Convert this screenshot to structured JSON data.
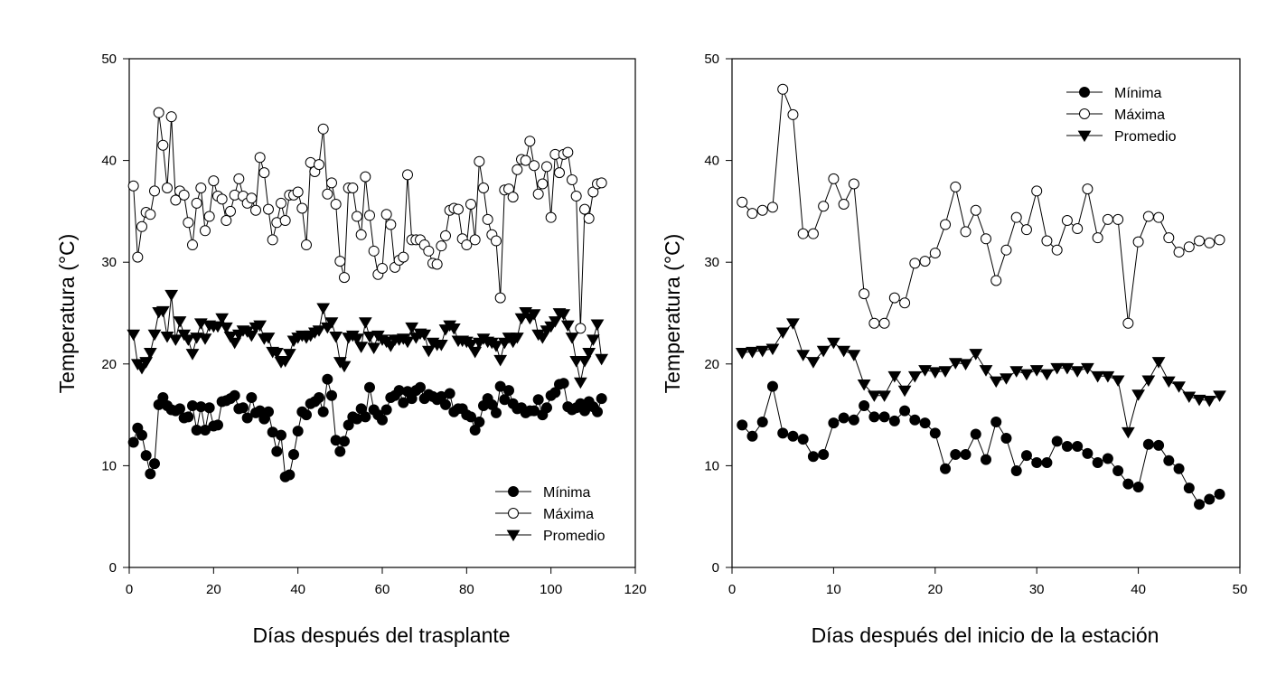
{
  "chart_data": [
    {
      "type": "line",
      "title": "",
      "xlabel": "Días después del trasplante",
      "ylabel": "Temperatura (°C)",
      "xlim": [
        0,
        120
      ],
      "ylim": [
        0,
        50
      ],
      "xticks": [
        0,
        20,
        40,
        60,
        80,
        100,
        120
      ],
      "yticks": [
        0,
        10,
        20,
        30,
        40,
        50
      ],
      "legend_position": "bottom-right",
      "x": [
        1,
        2,
        3,
        4,
        5,
        6,
        7,
        8,
        9,
        10,
        11,
        12,
        13,
        14,
        15,
        16,
        17,
        18,
        19,
        20,
        21,
        22,
        23,
        24,
        25,
        26,
        27,
        28,
        29,
        30,
        31,
        32,
        33,
        34,
        35,
        36,
        37,
        38,
        39,
        40,
        41,
        42,
        43,
        44,
        45,
        46,
        47,
        48,
        49,
        50,
        51,
        52,
        53,
        54,
        55,
        56,
        57,
        58,
        59,
        60,
        61,
        62,
        63,
        64,
        65,
        66,
        67,
        68,
        69,
        70,
        71,
        72,
        73,
        74,
        75,
        76,
        77,
        78,
        79,
        80,
        81,
        82,
        83,
        84,
        85,
        86,
        87,
        88,
        89,
        90,
        91,
        92,
        93,
        94,
        95,
        96,
        97,
        98,
        99,
        100,
        101,
        102,
        103,
        104,
        105,
        106,
        107,
        108,
        109,
        110,
        111,
        112
      ],
      "series": [
        {
          "name": "Mínima",
          "marker": "filled-circle",
          "values": [
            12.3,
            13.7,
            13,
            11,
            9.2,
            10.2,
            16,
            16.7,
            15.9,
            15.5,
            15.4,
            15.6,
            14.7,
            14.8,
            15.9,
            13.5,
            15.8,
            13.5,
            15.7,
            13.9,
            14,
            16.3,
            16.4,
            16.6,
            16.9,
            15.6,
            15.7,
            14.7,
            16.7,
            15.2,
            15.4,
            14.6,
            15.3,
            13.3,
            11.4,
            13,
            8.9,
            9.1,
            11.1,
            13.4,
            15.3,
            15,
            16.1,
            16.3,
            16.7,
            15.3,
            18.5,
            16.9,
            12.5,
            11.4,
            12.4,
            14,
            14.8,
            14.6,
            15.6,
            14.8,
            17.7,
            15.5,
            15,
            14.5,
            15.5,
            16.7,
            16.9,
            17.4,
            16.2,
            17.3,
            16.6,
            17.4,
            17.7,
            16.6,
            17,
            16.8,
            16.5,
            16.8,
            16,
            17.1,
            15.3,
            15.6,
            15.6,
            15,
            14.8,
            13.5,
            14.3,
            15.9,
            16.6,
            16,
            15.2,
            17.8,
            16.5,
            17.4,
            16.1,
            15.6,
            15.7,
            15.2,
            15.4,
            15.4,
            16.5,
            15,
            15.7,
            16.9,
            17.2,
            18,
            18.1,
            15.8,
            15.5,
            15.7,
            16.1,
            15.4,
            16.3,
            15.8,
            15.3,
            16.6
          ]
        },
        {
          "name": "Máxima",
          "marker": "open-circle",
          "values": [
            37.5,
            30.5,
            33.5,
            34.9,
            34.7,
            37,
            44.7,
            41.5,
            37.3,
            44.3,
            36.1,
            37,
            36.6,
            33.9,
            31.7,
            35.8,
            37.3,
            33.1,
            34.5,
            38,
            36.5,
            36.2,
            34.1,
            35,
            36.6,
            38.2,
            36.5,
            35.8,
            36.3,
            35.1,
            40.3,
            38.8,
            35.2,
            32.2,
            33.9,
            35.8,
            34.1,
            36.6,
            36.6,
            36.9,
            35.3,
            31.7,
            39.8,
            38.9,
            39.6,
            43.1,
            36.7,
            37.8,
            35.7,
            30.1,
            28.5,
            37.3,
            37.3,
            34.5,
            32.7,
            38.4,
            34.6,
            31.1,
            28.8,
            29.4,
            34.7,
            33.7,
            29.5,
            30.2,
            30.5,
            38.6,
            32.2,
            32.2,
            32.2,
            31.7,
            31.1,
            29.9,
            29.8,
            31.6,
            32.6,
            35.1,
            35.3,
            35.2,
            32.3,
            31.7,
            35.7,
            32.2,
            39.9,
            37.3,
            34.2,
            32.7,
            32.1,
            26.5,
            37.1,
            37.2,
            36.4,
            39.1,
            40.1,
            40,
            41.9,
            39.5,
            36.7,
            37.7,
            39.4,
            34.4,
            40.6,
            38.8,
            40.6,
            40.8,
            38.1,
            36.5,
            23.5,
            35.2,
            34.3,
            36.9,
            37.7,
            37.8
          ]
        },
        {
          "name": "Promedio",
          "marker": "filled-triangle-down",
          "values": [
            22.9,
            20,
            19.6,
            20.2,
            21.1,
            22.9,
            25.1,
            25.2,
            22.7,
            26.8,
            22.4,
            24.2,
            22.9,
            22.4,
            21,
            22.6,
            24,
            22.5,
            23.8,
            23.7,
            23.7,
            24.5,
            23.6,
            22.7,
            22.1,
            22.9,
            23.3,
            23.2,
            22.8,
            23.6,
            23.8,
            22.5,
            22.6,
            21.2,
            21.1,
            20.2,
            20.3,
            21,
            22.3,
            22.6,
            22.8,
            22.6,
            22.8,
            23.1,
            23.3,
            25.5,
            23.6,
            24.1,
            22.7,
            20.2,
            19.8,
            22.6,
            22.8,
            22.5,
            21.7,
            24.1,
            22.7,
            21.6,
            22.8,
            22.4,
            22.2,
            21.8,
            22.4,
            22.4,
            22.5,
            22.2,
            23.6,
            22.6,
            23,
            22.9,
            21.3,
            22.1,
            21.9,
            21.9,
            23.4,
            23.8,
            23.5,
            22.3,
            22.3,
            22.2,
            21.9,
            21.2,
            22.1,
            22.5,
            22.2,
            22.1,
            21.8,
            20.4,
            22.1,
            22.6,
            22.2,
            22.6,
            24.5,
            25.1,
            24.5,
            24.9,
            22.9,
            22.6,
            23.3,
            23.7,
            24.2,
            25,
            24.9,
            23.8,
            22.6,
            20.3,
            18.2,
            20.3,
            21.1,
            22.4,
            23.9,
            20.5
          ]
        }
      ]
    },
    {
      "type": "line",
      "title": "",
      "xlabel": "Días después del inicio de la estación",
      "ylabel": "Temperatura (°C)",
      "xlim": [
        0,
        50
      ],
      "ylim": [
        0,
        50
      ],
      "xticks": [
        0,
        10,
        20,
        30,
        40,
        50
      ],
      "yticks": [
        0,
        10,
        20,
        30,
        40,
        50
      ],
      "legend_position": "top-right",
      "x": [
        1,
        2,
        3,
        4,
        5,
        6,
        7,
        8,
        9,
        10,
        11,
        12,
        13,
        14,
        15,
        16,
        17,
        18,
        19,
        20,
        21,
        22,
        23,
        24,
        25,
        26,
        27,
        28,
        29,
        30,
        31,
        32,
        33,
        34,
        35,
        36,
        37,
        38,
        39,
        40,
        41,
        42,
        43,
        44,
        45,
        46,
        47,
        48
      ],
      "series": [
        {
          "name": "Mínima",
          "marker": "filled-circle",
          "values": [
            14,
            12.9,
            14.3,
            17.8,
            13.2,
            12.9,
            12.6,
            10.9,
            11.1,
            14.2,
            14.7,
            14.5,
            15.9,
            14.8,
            14.8,
            14.4,
            15.4,
            14.5,
            14.2,
            13.2,
            9.7,
            11.1,
            11.1,
            13.1,
            10.6,
            14.3,
            12.7,
            9.5,
            11,
            10.3,
            10.3,
            12.4,
            11.9,
            11.9,
            11.2,
            10.3,
            10.7,
            9.5,
            8.2,
            7.9,
            12.1,
            12,
            10.5,
            9.7,
            7.8,
            6.2,
            6.7,
            7.2
          ]
        },
        {
          "name": "Máxima",
          "marker": "open-circle",
          "values": [
            35.9,
            34.8,
            35.1,
            35.4,
            47,
            44.5,
            32.8,
            32.8,
            35.5,
            38.2,
            35.7,
            37.7,
            26.9,
            24,
            24,
            26.5,
            26,
            29.9,
            30.1,
            30.9,
            33.7,
            37.4,
            33,
            35.1,
            32.3,
            28.2,
            31.2,
            34.4,
            33.2,
            37,
            32.1,
            31.2,
            34.1,
            33.3,
            37.2,
            32.4,
            34.2,
            34.2,
            24,
            32,
            34.5,
            34.4,
            32.4,
            31,
            31.5,
            32.1,
            31.9,
            32.2
          ]
        },
        {
          "name": "Promedio",
          "marker": "filled-triangle-down",
          "values": [
            21.1,
            21.2,
            21.3,
            21.5,
            23.1,
            24,
            20.9,
            20.2,
            21.3,
            22.1,
            21.3,
            20.9,
            18,
            16.9,
            16.9,
            18.8,
            17.4,
            18.8,
            19.4,
            19.2,
            19.3,
            20.1,
            20,
            21,
            19.4,
            18.3,
            18.6,
            19.3,
            19,
            19.4,
            19,
            19.6,
            19.6,
            19.3,
            19.6,
            18.8,
            18.8,
            18.4,
            13.3,
            17,
            18.4,
            20.2,
            18.3,
            17.8,
            16.8,
            16.5,
            16.4,
            16.9
          ]
        }
      ]
    }
  ]
}
